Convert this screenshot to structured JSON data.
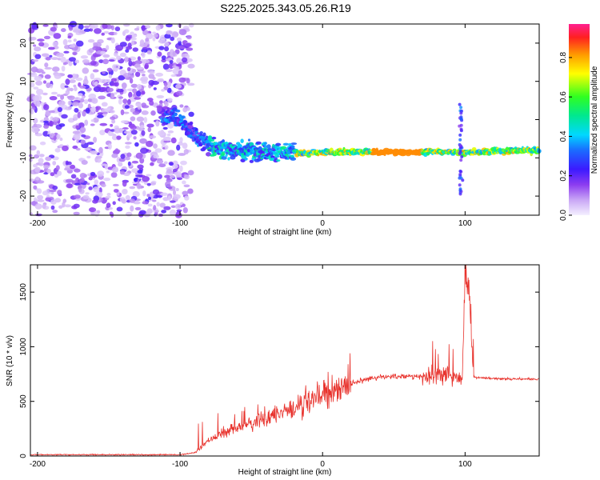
{
  "title": "S225.2025.343.05.26.R19",
  "chart_data": [
    {
      "type": "heatmap",
      "xlabel": "Height of straight line (km)",
      "ylabel": "Frequency (Hz)",
      "xlim": [
        -205,
        152
      ],
      "ylim": [
        -25,
        25
      ],
      "x_ticks": [
        -200,
        -100,
        0,
        100
      ],
      "y_ticks": [
        -20,
        -10,
        0,
        10,
        20
      ],
      "colorbar": {
        "label": "Normalized spectral amplitude",
        "range": [
          0,
          0.97
        ],
        "ticks": [
          0.0,
          0.2,
          0.4,
          0.6,
          0.8
        ]
      },
      "noise_region_x": [
        -205,
        -92
      ],
      "tone_track": [
        [
          -105,
          1
        ],
        [
          -95,
          -2
        ],
        [
          -88,
          -4.5
        ],
        [
          -80,
          -6.5
        ],
        [
          -70,
          -7.5
        ],
        [
          -60,
          -8
        ],
        [
          -50,
          -8.3
        ],
        [
          -40,
          -8.5
        ],
        [
          -30,
          -8.6
        ],
        [
          -20,
          -8.5
        ],
        [
          -10,
          -9
        ],
        [
          0,
          -8.5
        ],
        [
          20,
          -8.5
        ],
        [
          40,
          -8.5
        ],
        [
          60,
          -8.5
        ],
        [
          80,
          -8.4
        ],
        [
          100,
          -8.5
        ],
        [
          120,
          -8.3
        ],
        [
          152,
          -8
        ]
      ]
    },
    {
      "type": "line",
      "xlabel": "Height of straight line (km)",
      "ylabel": "SNR (10 * v/v)",
      "xlim": [
        -205,
        152
      ],
      "ylim": [
        0,
        1750
      ],
      "x_ticks": [
        -200,
        -100,
        0,
        100
      ],
      "y_ticks": [
        0,
        500,
        1000,
        1500
      ],
      "color": "#e8322c",
      "trend": [
        [
          -205,
          12
        ],
        [
          -100,
          12
        ],
        [
          -90,
          30
        ],
        [
          -80,
          140
        ],
        [
          -70,
          210
        ],
        [
          -60,
          250
        ],
        [
          -50,
          290
        ],
        [
          -40,
          330
        ],
        [
          -30,
          390
        ],
        [
          -20,
          430
        ],
        [
          -10,
          500
        ],
        [
          0,
          560
        ],
        [
          10,
          610
        ],
        [
          20,
          660
        ],
        [
          30,
          700
        ],
        [
          40,
          720
        ],
        [
          50,
          730
        ],
        [
          60,
          730
        ],
        [
          70,
          720
        ],
        [
          80,
          730
        ],
        [
          90,
          740
        ],
        [
          98,
          700
        ],
        [
          100,
          1750
        ],
        [
          103,
          1400
        ],
        [
          106,
          720
        ],
        [
          120,
          710
        ],
        [
          140,
          705
        ],
        [
          152,
          705
        ]
      ]
    }
  ]
}
